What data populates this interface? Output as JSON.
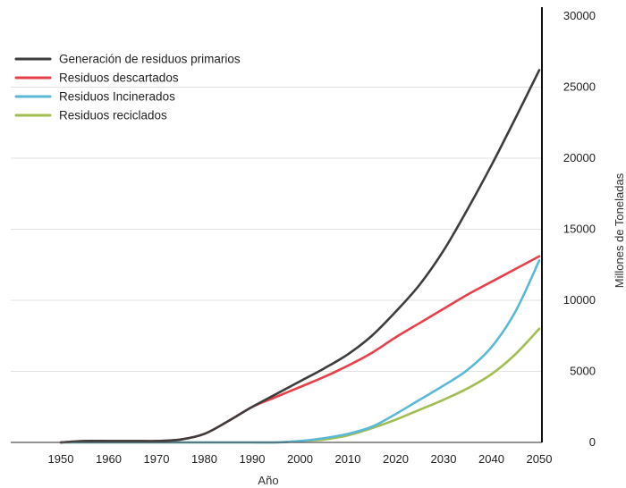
{
  "chart_data": {
    "type": "line",
    "title": "",
    "xlabel": "Año",
    "ylabel": "Millones de Toneladas",
    "x": [
      1950,
      1955,
      1960,
      1965,
      1970,
      1975,
      1980,
      1985,
      1990,
      1995,
      2000,
      2005,
      2010,
      2015,
      2020,
      2025,
      2030,
      2035,
      2040,
      2045,
      2050
    ],
    "xticks": [
      "1950",
      "1960",
      "1970",
      "1980",
      "1990",
      "2000",
      "2010",
      "2020",
      "2030",
      "2040",
      "2050"
    ],
    "yticks": [
      "0",
      "5000",
      "10000",
      "15000",
      "20000",
      "25000",
      "30000"
    ],
    "xlim": [
      1950,
      2050
    ],
    "ylim": [
      0,
      30000
    ],
    "grid": "horizontal",
    "y_axis_side": "right",
    "legend_position": "top-left",
    "series": [
      {
        "name": "Generación de residuos primarios",
        "color": "#3d3d3d",
        "values": [
          0,
          100,
          100,
          100,
          100,
          200,
          600,
          1500,
          2500,
          3400,
          4300,
          5200,
          6200,
          7500,
          9200,
          11100,
          13500,
          16400,
          19500,
          22800,
          26200
        ]
      },
      {
        "name": "Residuos descartados",
        "color": "#e8404a",
        "values": [
          0,
          100,
          100,
          100,
          100,
          200,
          600,
          1500,
          2500,
          3200,
          3900,
          4600,
          5400,
          6300,
          7400,
          8400,
          9400,
          10400,
          11300,
          12200,
          13100
        ]
      },
      {
        "name": "Residuos Incinerados",
        "color": "#5ab9d6",
        "values": [
          0,
          0,
          0,
          0,
          0,
          0,
          0,
          0,
          0,
          0,
          100,
          300,
          600,
          1100,
          2000,
          3000,
          4000,
          5100,
          6700,
          9200,
          12800
        ]
      },
      {
        "name": "Residuos reciclados",
        "color": "#a2bd50",
        "values": [
          0,
          0,
          0,
          0,
          0,
          0,
          0,
          0,
          0,
          0,
          100,
          200,
          500,
          1000,
          1600,
          2300,
          3000,
          3800,
          4800,
          6200,
          8000
        ]
      }
    ]
  }
}
